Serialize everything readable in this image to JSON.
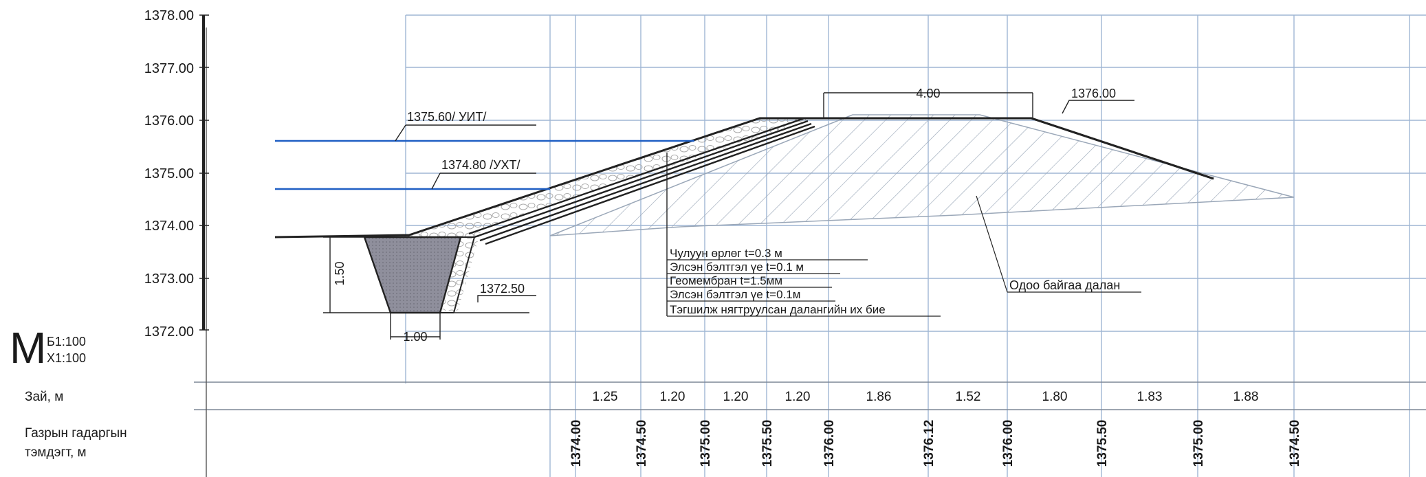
{
  "elevation_axis": [
    "1378.00",
    "1377.00",
    "1376.00",
    "1375.00",
    "1374.00",
    "1373.00",
    "1372.00"
  ],
  "scale": {
    "letter": "M",
    "horizontal": "Б1:100",
    "vertical": "Х1:100"
  },
  "levels": {
    "high": "1375.60/ УИТ/",
    "low": "1374.80 /УХТ/",
    "crest_width": "4.00",
    "crest_elev": "1376.00",
    "ditch_bottom": "1372.50",
    "ditch_depth": "1.50",
    "ditch_width": "1.00"
  },
  "layers": [
    "Чулуун өрлөг  t=0.3 м",
    "Элсэн бэлтгэл үе t=0.1 м",
    "Геомембран  t=1.5мм",
    "Элсэн бэлтгэл үе t=0.1м",
    "Тэгшилж нягтруулсан далангийн их бие"
  ],
  "existing_dam": "Одоо байгаа далан",
  "rows": {
    "distance_label": "Зай, м",
    "ground_label_1": "Газрын гадаргын",
    "ground_label_2": "тэмдэгт, м",
    "distances": [
      "1.25",
      "1.20",
      "1.20",
      "1.20",
      "1.86",
      "1.52",
      "1.80",
      "1.83",
      "1.88"
    ],
    "ground_elevations": [
      "1374.00",
      "1374.50",
      "1375.00",
      "1375.50",
      "1376.00",
      "1376.12",
      "1376.00",
      "1375.50",
      "1375.00",
      "1374.50"
    ]
  },
  "colors": {
    "water_line": "#1f5fc4",
    "grid": "#9fb6d4",
    "fill": "#8e8e9a"
  }
}
